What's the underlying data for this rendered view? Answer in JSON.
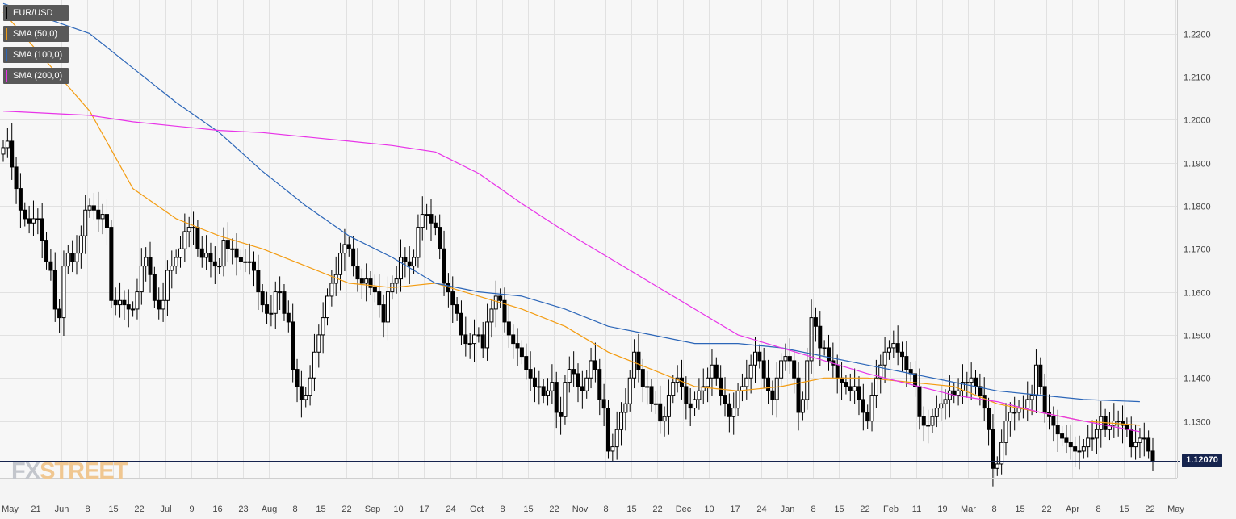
{
  "legend": [
    {
      "label": "EUR/USD",
      "color": "#000000"
    },
    {
      "label": "SMA (50,0)",
      "color": "#f39c12"
    },
    {
      "label": "SMA (100,0)",
      "color": "#2c66b8"
    },
    {
      "label": "SMA (200,0)",
      "color": "#e833e8"
    }
  ],
  "current_price_label": "1.12070",
  "watermark": {
    "part1": "FX",
    "part2": "STREET"
  },
  "colors": {
    "background": "#f7f7f7",
    "grid": "#e1e1e1",
    "candle_up": "#ffffff",
    "candle_down": "#000000",
    "candle_border": "#000000",
    "price_line": "#16244e",
    "sma50": "#f39c12",
    "sma100": "#2c66b8",
    "sma200": "#e833e8"
  },
  "chart_data": {
    "type": "candlestick",
    "symbol": "EUR/USD",
    "timeframe": "daily",
    "title": "",
    "xlabel": "",
    "ylabel": "",
    "ylim": [
      1.1168,
      1.2278
    ],
    "y_ticks": [
      "1.1300",
      "1.1400",
      "1.1500",
      "1.1600",
      "1.1700",
      "1.1800",
      "1.1900",
      "1.2000",
      "1.2100",
      "1.2200"
    ],
    "x_ticks": [
      "May",
      "21",
      "Jun",
      "8",
      "15",
      "22",
      "Jul",
      "9",
      "16",
      "23",
      "Aug",
      "8",
      "15",
      "22",
      "Sep",
      "10",
      "17",
      "24",
      "Oct",
      "8",
      "15",
      "22",
      "Nov",
      "8",
      "15",
      "22",
      "Dec",
      "10",
      "17",
      "24",
      "Jan",
      "8",
      "15",
      "22",
      "Feb",
      "11",
      "19",
      "Mar",
      "8",
      "15",
      "22",
      "Apr",
      "8",
      "15",
      "22",
      "May"
    ],
    "grid": true,
    "last_price": 1.1207,
    "ohlc_start": 1.192,
    "closes": [
      1.1935,
      1.195,
      1.189,
      1.184,
      1.179,
      1.177,
      1.176,
      1.177,
      1.177,
      1.172,
      1.167,
      1.165,
      1.156,
      1.154,
      1.166,
      1.169,
      1.167,
      1.169,
      1.173,
      1.179,
      1.18,
      1.179,
      1.177,
      1.178,
      1.175,
      1.158,
      1.157,
      1.158,
      1.157,
      1.156,
      1.156,
      1.16,
      1.166,
      1.168,
      1.164,
      1.158,
      1.156,
      1.158,
      1.165,
      1.166,
      1.168,
      1.17,
      1.174,
      1.175,
      1.175,
      1.17,
      1.168,
      1.169,
      1.167,
      1.166,
      1.166,
      1.172,
      1.17,
      1.17,
      1.168,
      1.167,
      1.167,
      1.167,
      1.165,
      1.16,
      1.157,
      1.155,
      1.155,
      1.16,
      1.16,
      1.155,
      1.153,
      1.142,
      1.138,
      1.135,
      1.136,
      1.14,
      1.146,
      1.15,
      1.154,
      1.159,
      1.162,
      1.164,
      1.169,
      1.171,
      1.17,
      1.166,
      1.163,
      1.162,
      1.163,
      1.161,
      1.16,
      1.157,
      1.153,
      1.16,
      1.162,
      1.163,
      1.168,
      1.167,
      1.166,
      1.168,
      1.175,
      1.178,
      1.178,
      1.176,
      1.175,
      1.17,
      1.162,
      1.16,
      1.157,
      1.155,
      1.15,
      1.148,
      1.148,
      1.15,
      1.15,
      1.147,
      1.153,
      1.156,
      1.159,
      1.158,
      1.153,
      1.15,
      1.148,
      1.147,
      1.145,
      1.142,
      1.14,
      1.138,
      1.138,
      1.136,
      1.137,
      1.139,
      1.132,
      1.131,
      1.139,
      1.142,
      1.141,
      1.138,
      1.137,
      1.14,
      1.144,
      1.142,
      1.135,
      1.133,
      1.123,
      1.124,
      1.128,
      1.132,
      1.134,
      1.14,
      1.146,
      1.142,
      1.138,
      1.138,
      1.134,
      1.134,
      1.13,
      1.131,
      1.136,
      1.139,
      1.14,
      1.138,
      1.134,
      1.133,
      1.135,
      1.137,
      1.138,
      1.14,
      1.143,
      1.14,
      1.136,
      1.134,
      1.131,
      1.133,
      1.137,
      1.138,
      1.14,
      1.143,
      1.146,
      1.144,
      1.14,
      1.137,
      1.135,
      1.14,
      1.144,
      1.145,
      1.144,
      1.14,
      1.132,
      1.135,
      1.144,
      1.154,
      1.152,
      1.147,
      1.147,
      1.144,
      1.143,
      1.14,
      1.139,
      1.138,
      1.137,
      1.138,
      1.135,
      1.132,
      1.13,
      1.136,
      1.14,
      1.143,
      1.146,
      1.147,
      1.148,
      1.146,
      1.145,
      1.142,
      1.141,
      1.138,
      1.131,
      1.129,
      1.129,
      1.131,
      1.133,
      1.134,
      1.135,
      1.137,
      1.136,
      1.137,
      1.139,
      1.139,
      1.14,
      1.138,
      1.136,
      1.133,
      1.128,
      1.119,
      1.12,
      1.125,
      1.13,
      1.132,
      1.132,
      1.133,
      1.133,
      1.135,
      1.136,
      1.143,
      1.138,
      1.132,
      1.131,
      1.129,
      1.127,
      1.126,
      1.125,
      1.124,
      1.123,
      1.123,
      1.124,
      1.126,
      1.126,
      1.128,
      1.131,
      1.128,
      1.129,
      1.13,
      1.13,
      1.129,
      1.128,
      1.124,
      1.125,
      1.126,
      1.126,
      1.123,
      1.1207
    ],
    "series": [
      {
        "name": "SMA (50,0)",
        "x": [
          0,
          20,
          30,
          40,
          50,
          60,
          70,
          80,
          90,
          100,
          110,
          120,
          130,
          140,
          150,
          160,
          170,
          180,
          190,
          200,
          210,
          220,
          230,
          240,
          250,
          263
        ],
        "values": [
          1.225,
          1.202,
          1.184,
          1.177,
          1.173,
          1.17,
          1.166,
          1.162,
          1.161,
          1.162,
          1.159,
          1.156,
          1.152,
          1.146,
          1.142,
          1.138,
          1.137,
          1.138,
          1.14,
          1.14,
          1.139,
          1.138,
          1.134,
          1.132,
          1.13,
          1.129
        ]
      },
      {
        "name": "SMA (100,0)",
        "x": [
          0,
          20,
          30,
          40,
          50,
          60,
          70,
          80,
          90,
          100,
          110,
          120,
          130,
          140,
          150,
          160,
          170,
          180,
          190,
          200,
          210,
          220,
          230,
          240,
          250,
          263
        ],
        "values": [
          1.227,
          1.22,
          1.212,
          1.204,
          1.197,
          1.188,
          1.18,
          1.173,
          1.168,
          1.162,
          1.16,
          1.159,
          1.156,
          1.152,
          1.15,
          1.148,
          1.148,
          1.147,
          1.145,
          1.143,
          1.141,
          1.139,
          1.137,
          1.136,
          1.135,
          1.1345
        ]
      },
      {
        "name": "SMA (200,0)",
        "x": [
          0,
          20,
          30,
          40,
          50,
          60,
          70,
          80,
          90,
          100,
          110,
          120,
          130,
          140,
          150,
          160,
          170,
          180,
          190,
          200,
          210,
          220,
          230,
          240,
          250,
          263
        ],
        "values": [
          1.202,
          1.201,
          1.1995,
          1.1985,
          1.1975,
          1.197,
          1.196,
          1.195,
          1.194,
          1.1925,
          1.1875,
          1.1805,
          1.174,
          1.168,
          1.162,
          1.156,
          1.15,
          1.147,
          1.144,
          1.141,
          1.1385,
          1.136,
          1.1345,
          1.132,
          1.13,
          1.1275
        ]
      }
    ]
  }
}
